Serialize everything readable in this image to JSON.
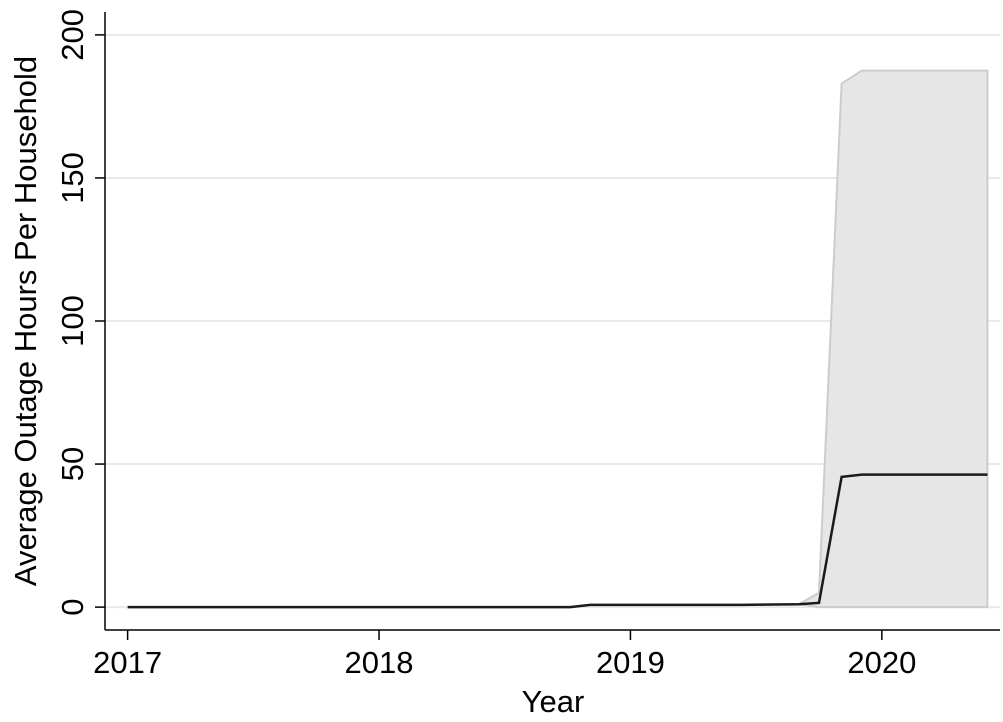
{
  "chart_data": {
    "type": "line",
    "xlabel": "Year",
    "ylabel": "Average Outage Hours Per Household",
    "x": [
      2017.0,
      2018.76,
      2018.84,
      2019.44,
      2019.67,
      2019.75,
      2019.84,
      2019.92,
      2020.42
    ],
    "series": [
      {
        "color": "#1a1a1a",
        "values": [
          0,
          0,
          0.8,
          0.8,
          1,
          1.5,
          45.5,
          46.3,
          46.3
        ]
      }
    ],
    "band": {
      "color": "#e6e6e6",
      "edge_color": "#cccccc",
      "lower": [
        0,
        0,
        0.8,
        0.8,
        1,
        0,
        0,
        0,
        0
      ],
      "upper": [
        0,
        0,
        0.8,
        0.8,
        1,
        5,
        183,
        187.5,
        187.5
      ]
    },
    "xlim": [
      2016.91,
      2020.47
    ],
    "ylim": [
      -8,
      208
    ],
    "xticks": [
      2017,
      2018,
      2019,
      2020
    ],
    "yticks": [
      0,
      50,
      100,
      150,
      200
    ],
    "grid": true,
    "grid_color": "#e3ecec"
  }
}
